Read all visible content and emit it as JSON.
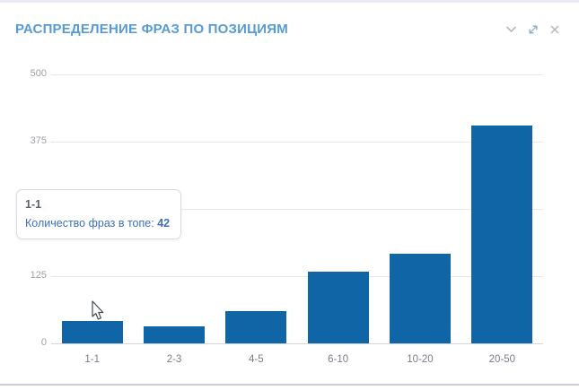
{
  "header": {
    "title": "РАСПРЕДЕЛЕНИЕ ФРАЗ ПО ПОЗИЦИЯМ",
    "controls": {
      "collapse_icon": "chevron-down",
      "expand_icon": "diagonal-expand-arrows",
      "close_icon": "close-x"
    }
  },
  "tooltip": {
    "category": "1-1",
    "label": "Количество фраз в топе:",
    "value": "42"
  },
  "chart_data": {
    "type": "bar",
    "title": "",
    "xlabel": "",
    "ylabel": "",
    "categories": [
      "1-1",
      "2-3",
      "4-5",
      "6-10",
      "10-20",
      "20-50"
    ],
    "values": [
      42,
      31,
      60,
      134,
      167,
      405
    ],
    "ylim": [
      0,
      500
    ],
    "yticks": [
      0,
      125,
      250,
      375,
      500
    ],
    "grid": true,
    "legend": "none",
    "tooltip_series_label": "Количество фраз в топе"
  },
  "colors": {
    "accent_title": "#569bd5",
    "bar": "#1065a7",
    "grid": "#e7e7e9",
    "axis_line": "#d3d5d9",
    "tick_label": "#9aa0a6",
    "category_label": "#767e88",
    "icon_gray": "#b3b7bc",
    "icon_expand_blue": "#8ba6c6",
    "tooltip_text": "#3e6fba"
  }
}
